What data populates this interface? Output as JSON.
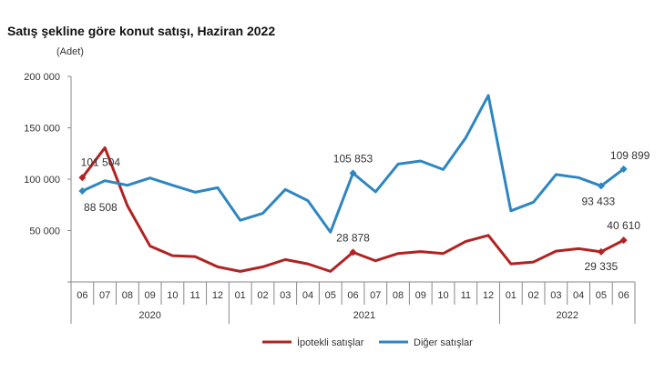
{
  "chart_data": {
    "type": "line",
    "title": "Satış şekline göre konut satışı, Haziran 2022",
    "ylabel": "(Adet)",
    "xlabel": "",
    "ylim": [
      0,
      200000
    ],
    "yticks": [
      "200 000",
      "150 000",
      "100 000",
      "50 000"
    ],
    "ytick_values": [
      200000,
      150000,
      100000,
      50000
    ],
    "grid": false,
    "legend_position": "bottom",
    "categories": [
      "06",
      "07",
      "08",
      "09",
      "10",
      "11",
      "12",
      "01",
      "02",
      "03",
      "04",
      "05",
      "06",
      "07",
      "08",
      "09",
      "10",
      "11",
      "12",
      "01",
      "02",
      "03",
      "04",
      "05",
      "06"
    ],
    "years": [
      {
        "label": "2020",
        "months": 7
      },
      {
        "label": "2021",
        "months": 12
      },
      {
        "label": "2022",
        "months": 6
      }
    ],
    "series": [
      {
        "name": "İpotekli satışlar",
        "color": "#b22222",
        "values": [
          101504,
          130600,
          74100,
          35000,
          25600,
          24700,
          14700,
          10300,
          14700,
          21800,
          17600,
          10300,
          28878,
          20600,
          27700,
          29500,
          27700,
          39400,
          45300,
          17600,
          19400,
          30000,
          32400,
          29335,
          40610
        ],
        "data_labels": [
          {
            "index": 0,
            "text": "101 504"
          },
          {
            "index": 12,
            "text": "28 878"
          },
          {
            "index": 23,
            "text": "29 335"
          },
          {
            "index": 24,
            "text": "40 610"
          }
        ]
      },
      {
        "name": "Diğer satışlar",
        "color": "#2e86c1",
        "values": [
          88508,
          98500,
          94100,
          101200,
          94100,
          87300,
          91700,
          60000,
          66800,
          90000,
          79100,
          48500,
          105853,
          87700,
          114700,
          117700,
          109400,
          140300,
          181500,
          69200,
          77600,
          104500,
          101500,
          93433,
          109899
        ],
        "data_labels": [
          {
            "index": 0,
            "text": "88 508"
          },
          {
            "index": 12,
            "text": "105 853"
          },
          {
            "index": 23,
            "text": "93 433"
          },
          {
            "index": 24,
            "text": "109 899"
          }
        ]
      }
    ]
  }
}
